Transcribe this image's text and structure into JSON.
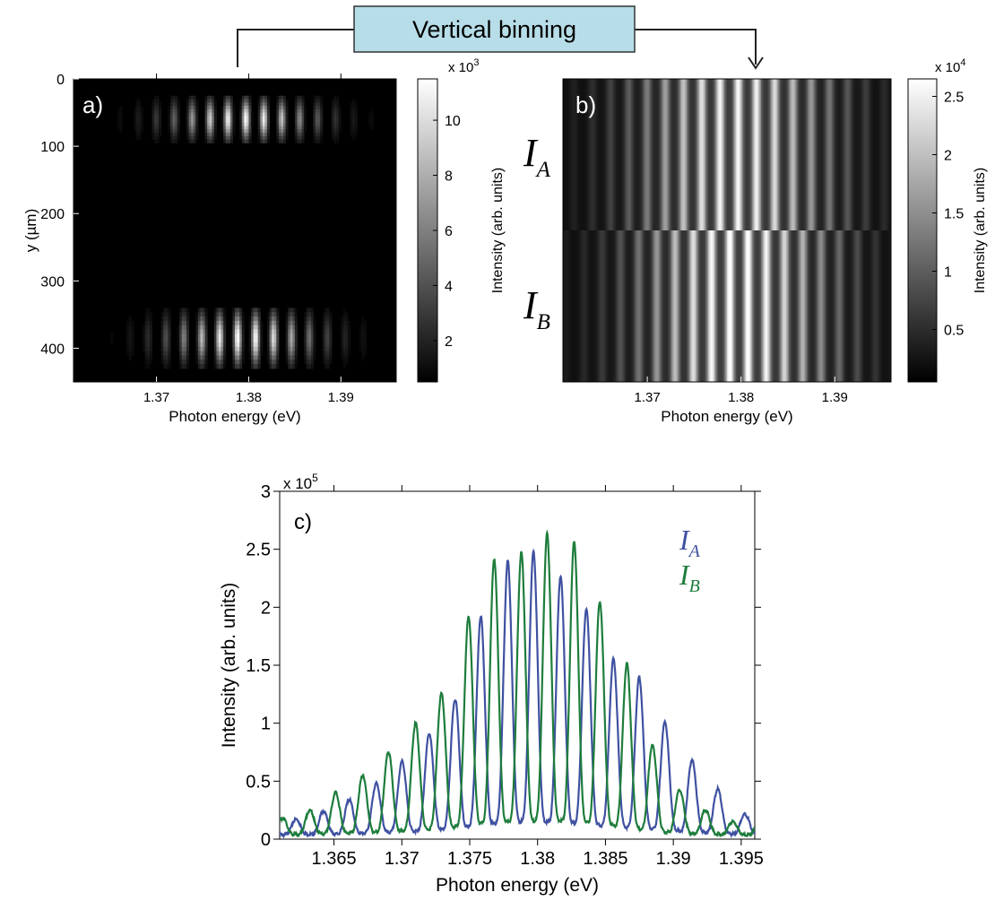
{
  "banner": {
    "label": "Vertical binning",
    "fill": "#b7dde8"
  },
  "chart_data": [
    {
      "panel": "a)",
      "type": "heatmap",
      "xlabel": "Photon energy (eV)",
      "ylabel": "y (µm)",
      "xlim": [
        1.361,
        1.396
      ],
      "ylim": [
        0,
        450
      ],
      "xticks": [
        "1.37",
        "1.38",
        "1.39"
      ],
      "yticks": [
        "0",
        "100",
        "200",
        "300",
        "400"
      ],
      "y_inverted": true,
      "colorbar": {
        "label": "Intensity (arb. units)",
        "multiplier": "x 10",
        "exponent": "3",
        "range": [
          0.5,
          11.5
        ],
        "ticks": [
          "2",
          "4",
          "6",
          "8",
          "10"
        ]
      },
      "bands": [
        {
          "y_center": 60,
          "y_halfwidth": 35,
          "peak_intensity": 11.0
        },
        {
          "y_center": 385,
          "y_halfwidth": 45,
          "peak_intensity": 11.3
        }
      ],
      "fringe_spacing_ev": 0.00195,
      "envelope_center_ev": 1.3795,
      "envelope_sigma_ev": 0.0055
    },
    {
      "panel": "b)",
      "type": "heatmap",
      "xlabel": "Photon energy (eV)",
      "xlim": [
        1.361,
        1.396
      ],
      "xticks": [
        "1.37",
        "1.38",
        "1.39"
      ],
      "row_labels": [
        {
          "main": "I",
          "sub": "A"
        },
        {
          "main": "I",
          "sub": "B"
        }
      ],
      "colorbar": {
        "label": "Intensity (arb. units)",
        "multiplier": "x 10",
        "exponent": "4",
        "range": [
          0.05,
          2.65
        ],
        "ticks": [
          "0.5",
          "1",
          "1.5",
          "2",
          "2.5"
        ]
      },
      "split_fraction": 0.5
    },
    {
      "panel": "c)",
      "type": "line",
      "xlabel": "Photon energy (eV)",
      "ylabel": "Intensity (arb. units)",
      "xlim": [
        1.361,
        1.396
      ],
      "ylim": [
        0,
        3
      ],
      "multiplier": "x 10",
      "exponent": "5",
      "xticks": [
        "1.365",
        "1.37",
        "1.375",
        "1.38",
        "1.385",
        "1.39",
        "1.395"
      ],
      "yticks": [
        "0",
        "0.5",
        "1",
        "1.5",
        "2",
        "2.5",
        "3"
      ],
      "legend_position": "top-right",
      "series": [
        {
          "label_main": "I",
          "label_sub": "A",
          "color": "#3f51a1",
          "peaks_x": [
            1.3622,
            1.3642,
            1.3661,
            1.3681,
            1.37,
            1.372,
            1.3739,
            1.3758,
            1.3778,
            1.3797,
            1.3817,
            1.3836,
            1.3856,
            1.3875,
            1.3894,
            1.3914,
            1.3933,
            1.3953
          ],
          "peaks_y": [
            0.17,
            0.24,
            0.34,
            0.48,
            0.67,
            0.91,
            1.2,
            1.92,
            2.4,
            2.48,
            2.27,
            1.99,
            1.55,
            1.4,
            1.01,
            0.68,
            0.43,
            0.21
          ]
        },
        {
          "label_main": "I",
          "label_sub": "B",
          "color": "#1e7d3c",
          "peaks_x": [
            1.3612,
            1.3632,
            1.3651,
            1.3671,
            1.369,
            1.371,
            1.3729,
            1.3749,
            1.3768,
            1.3788,
            1.3807,
            1.3827,
            1.3846,
            1.3866,
            1.3885,
            1.3905,
            1.3924,
            1.3944
          ],
          "peaks_y": [
            0.18,
            0.25,
            0.4,
            0.55,
            0.75,
            1.0,
            1.25,
            1.92,
            2.42,
            2.47,
            2.63,
            2.57,
            2.05,
            1.51,
            0.8,
            0.42,
            0.25,
            0.15
          ]
        }
      ]
    }
  ]
}
